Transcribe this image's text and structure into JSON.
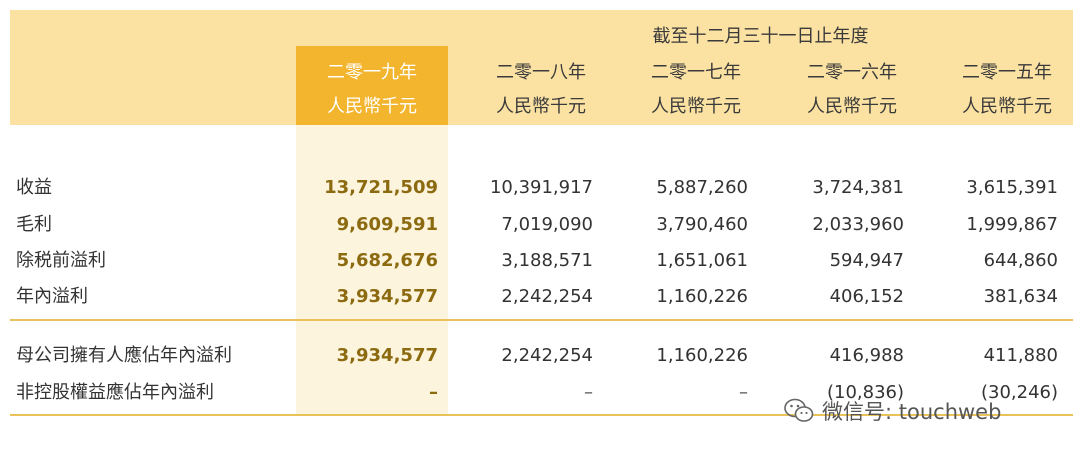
{
  "header": {
    "period": "截至十二月三十一日止年度",
    "columns": [
      {
        "year": "二零一九年",
        "unit": "人民幣千元"
      },
      {
        "year": "二零一八年",
        "unit": "人民幣千元"
      },
      {
        "year": "二零一七年",
        "unit": "人民幣千元"
      },
      {
        "year": "二零一六年",
        "unit": "人民幣千元"
      },
      {
        "year": "二零一五年",
        "unit": "人民幣千元"
      }
    ]
  },
  "rows": [
    {
      "label": "收益",
      "values": [
        "13,721,509",
        "10,391,917",
        "5,887,260",
        "3,724,381",
        "3,615,391"
      ]
    },
    {
      "label": "毛利",
      "values": [
        "9,609,591",
        "7,019,090",
        "3,790,460",
        "2,033,960",
        "1,999,867"
      ]
    },
    {
      "label": "除税前溢利",
      "values": [
        "5,682,676",
        "3,188,571",
        "1,651,061",
        "594,947",
        "644,860"
      ]
    },
    {
      "label": "年內溢利",
      "values": [
        "3,934,577",
        "2,242,254",
        "1,160,226",
        "406,152",
        "381,634"
      ]
    },
    {
      "label": "母公司擁有人應佔年內溢利",
      "values": [
        "3,934,577",
        "2,242,254",
        "1,160,226",
        "416,988",
        "411,880"
      ]
    },
    {
      "label": "非控股權益應佔年內溢利",
      "values": [
        "–",
        "–",
        "–",
        "(10,836)",
        "(30,246)"
      ]
    }
  ],
  "watermark": {
    "text": "微信号: touchweb",
    "icon": "wechat-icon"
  },
  "colors": {
    "header_band": "#fbe2a3",
    "highlight_head": "#f2b52d",
    "highlight_col": "#fdf4de",
    "rule": "#e9c25a"
  }
}
